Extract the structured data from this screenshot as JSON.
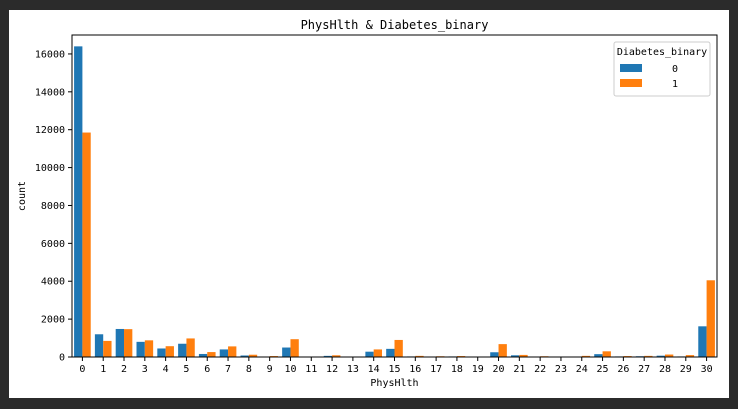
{
  "chart_data": {
    "type": "bar",
    "title": "PhysHlth & Diabetes_binary",
    "xlabel": "PhysHlth",
    "ylabel": "count",
    "categories": [
      "0",
      "1",
      "2",
      "3",
      "4",
      "5",
      "6",
      "7",
      "8",
      "9",
      "10",
      "11",
      "12",
      "13",
      "14",
      "15",
      "16",
      "17",
      "18",
      "19",
      "20",
      "21",
      "22",
      "23",
      "24",
      "25",
      "26",
      "27",
      "28",
      "29",
      "30"
    ],
    "ylim": [
      0,
      17000
    ],
    "yticks": [
      0,
      2000,
      4000,
      6000,
      8000,
      10000,
      12000,
      14000,
      16000
    ],
    "legend": {
      "title": "Diabetes_binary",
      "placement": "upper right"
    },
    "series": [
      {
        "name": "0",
        "color": "#1f77b4",
        "values": [
          16400,
          1200,
          1480,
          800,
          450,
          700,
          160,
          400,
          80,
          25,
          500,
          10,
          60,
          10,
          280,
          430,
          30,
          20,
          30,
          10,
          250,
          90,
          25,
          10,
          25,
          150,
          30,
          40,
          70,
          30,
          1620
        ]
      },
      {
        "name": "1",
        "color": "#ff7f0e",
        "values": [
          11850,
          850,
          1470,
          880,
          570,
          980,
          260,
          560,
          120,
          50,
          940,
          15,
          90,
          15,
          400,
          900,
          60,
          40,
          50,
          15,
          680,
          110,
          40,
          15,
          60,
          300,
          50,
          60,
          130,
          100,
          4050
        ]
      }
    ]
  }
}
